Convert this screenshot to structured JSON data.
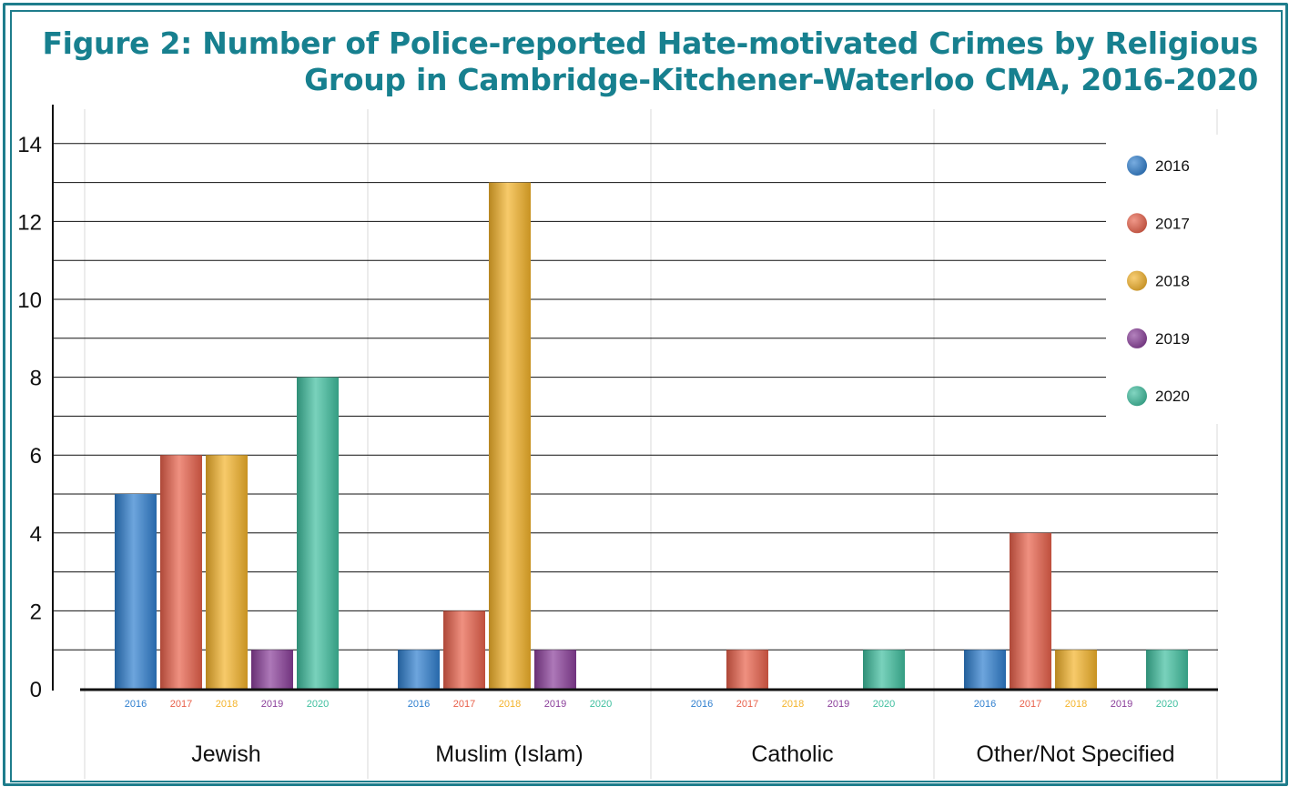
{
  "chart_data": {
    "type": "bar",
    "title_line1": "Figure 2: Number of Police-reported Hate-motivated Crimes by Religious",
    "title_line2": "Group in Cambridge-Kitchener-Waterloo CMA, 2016-2020",
    "categories": [
      "Jewish",
      "Muslim (Islam)",
      "Catholic",
      "Other/Not Specified"
    ],
    "series": [
      {
        "name": "2016",
        "color": "#2f7fcf",
        "values": [
          5,
          1,
          0,
          1
        ]
      },
      {
        "name": "2017",
        "color": "#e8604a",
        "values": [
          6,
          2,
          1,
          4
        ]
      },
      {
        "name": "2018",
        "color": "#f4b32a",
        "values": [
          6,
          13,
          0,
          1
        ]
      },
      {
        "name": "2019",
        "color": "#8a3e9a",
        "values": [
          1,
          1,
          0,
          0
        ]
      },
      {
        "name": "2020",
        "color": "#3fbf9f",
        "values": [
          8,
          0,
          1,
          1
        ]
      }
    ],
    "ylim": [
      0,
      15
    ],
    "yticks": [
      0,
      2,
      4,
      6,
      8,
      10,
      12,
      14
    ],
    "legend_position": "top-right",
    "grid": true
  }
}
